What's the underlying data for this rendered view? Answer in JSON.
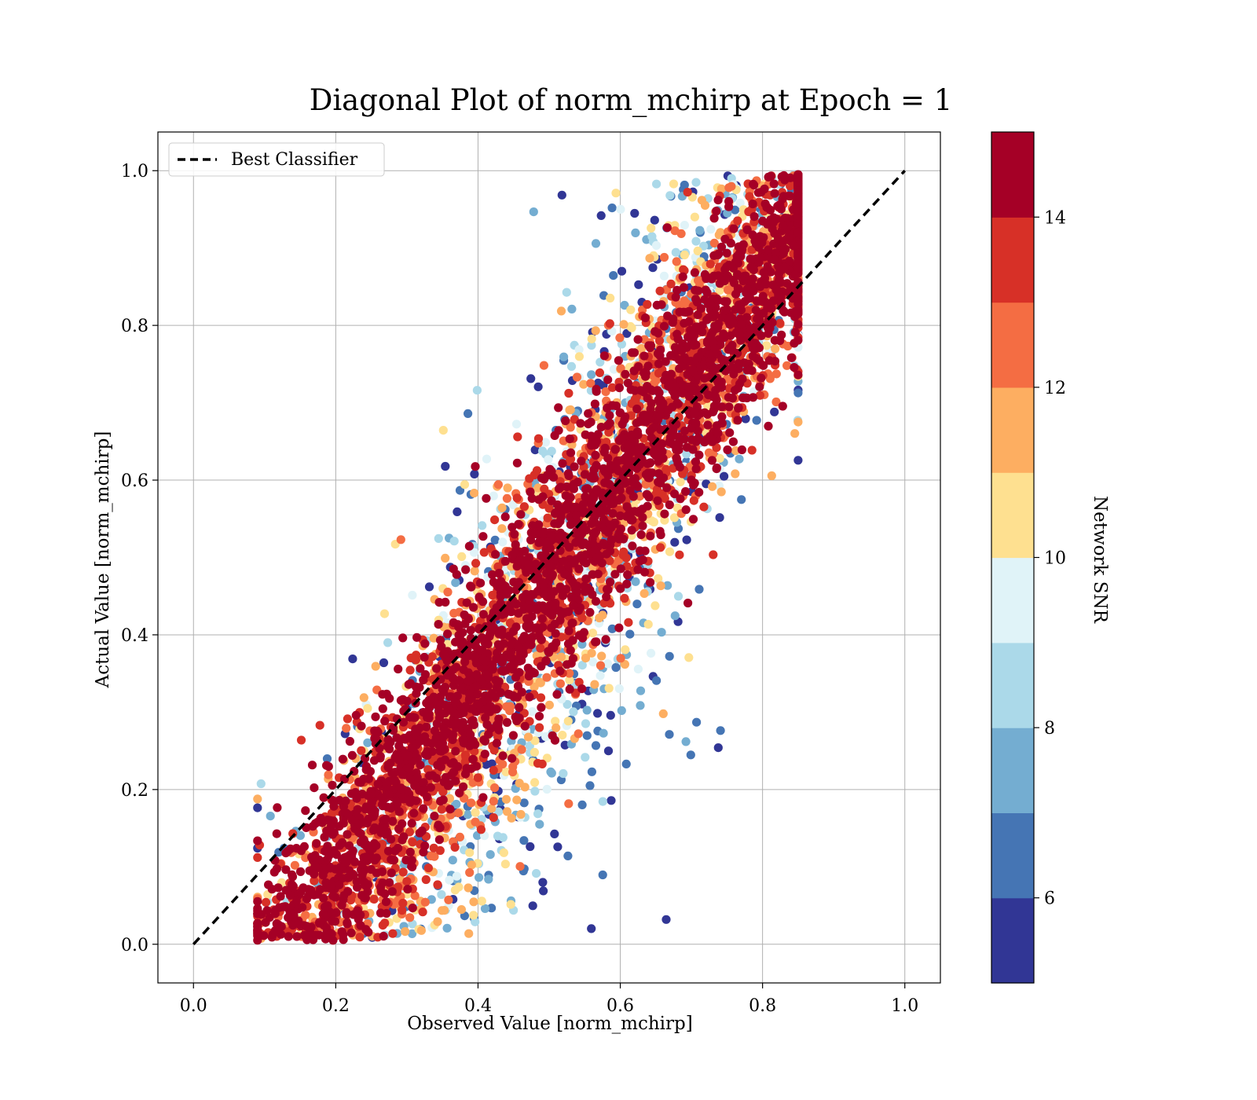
{
  "chart_data": {
    "type": "scatter",
    "title": "Diagonal Plot of norm_mchirp at Epoch = 1",
    "xlabel": "Observed Value [norm_mchirp]",
    "ylabel": "Actual Value [norm_mchirp]",
    "xlim": [
      -0.05,
      1.05
    ],
    "ylim": [
      -0.05,
      1.05
    ],
    "xticks": [
      "0.0",
      "0.2",
      "0.4",
      "0.6",
      "0.8",
      "1.0"
    ],
    "yticks": [
      "0.0",
      "0.2",
      "0.4",
      "0.6",
      "0.8",
      "1.0"
    ],
    "grid": true,
    "legend": {
      "position": "top-left",
      "entries": [
        "Best Classifier"
      ]
    },
    "reference_line": {
      "name": "Best Classifier",
      "x": [
        0.0,
        1.0
      ],
      "y": [
        0.0,
        1.0
      ],
      "style": "dashed",
      "color": "#000000"
    },
    "colorbar": {
      "label": "Network SNR",
      "range": [
        5,
        15
      ],
      "ticks": [
        "6",
        "8",
        "10",
        "12",
        "14"
      ],
      "tick_values": [
        6,
        8,
        10,
        12,
        14
      ],
      "colors": [
        "#313695",
        "#4575b4",
        "#74add1",
        "#abd9e9",
        "#e0f3f8",
        "#fee090",
        "#fdae61",
        "#f46d43",
        "#d73027",
        "#a50026"
      ]
    },
    "point_cloud": {
      "description_of_distribution": "dense cloud along diagonal",
      "core_relation": "y ≈ x",
      "x_range": [
        0.08,
        0.85
      ],
      "y_range": [
        0.0,
        1.0
      ]
    }
  }
}
